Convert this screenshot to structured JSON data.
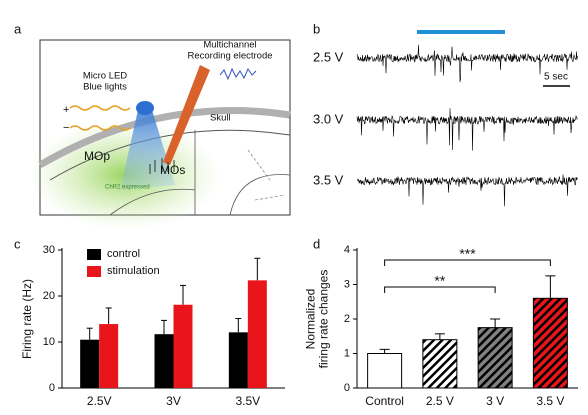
{
  "panel_labels": [
    "a",
    "b"
  ],
  "schematic": {
    "electrode_label": [
      "Multichannel",
      "Recording electrode"
    ],
    "led_label": [
      "Micro LED",
      "Blue lights"
    ],
    "skull": "Skull",
    "mop": "MOp",
    "mos": "MOs",
    "chr2": "ChR2 expressed",
    "plus": "+",
    "minus": "−"
  },
  "traces": {
    "voltages": [
      "2.5 V",
      "3.0 V",
      "3.5 V"
    ],
    "scale": "5 sec"
  },
  "chart_data": [
    {
      "type": "bar",
      "panel": "c",
      "ylabel": "Firing rate (Hz)",
      "categories": [
        "2.5V",
        "3V",
        "3.5V"
      ],
      "series": [
        {
          "name": "control",
          "color": "#000000",
          "values": [
            10.5,
            11.7,
            12.1
          ],
          "errors": [
            2.5,
            3,
            3
          ]
        },
        {
          "name": "stimulation",
          "color": "#e8151b",
          "values": [
            13.9,
            18.1,
            23.4
          ],
          "errors": [
            3.5,
            4.2,
            4.8
          ]
        }
      ],
      "ylim": [
        0,
        30
      ],
      "yticks": [
        0,
        10,
        20,
        30
      ],
      "legend": "top-left"
    },
    {
      "type": "bar",
      "panel": "d",
      "ylabel": [
        "Normalized",
        "firing rate changes"
      ],
      "categories": [
        "Control",
        "2.5 V",
        "3 V",
        "3.5 V"
      ],
      "values": [
        1.0,
        1.4,
        1.75,
        2.6
      ],
      "errors": [
        0.12,
        0.17,
        0.25,
        0.65
      ],
      "colors": [
        "#ffffff",
        "#ffffff",
        "#808080",
        "#e8151b"
      ],
      "hatch": [
        false,
        true,
        true,
        true
      ],
      "ylim": [
        0,
        4
      ],
      "yticks": [
        0,
        1,
        2,
        3,
        4
      ],
      "annotations": [
        {
          "text": "**",
          "from": "Control",
          "to": "3 V"
        },
        {
          "text": "***",
          "from": "Control",
          "to": "3.5 V"
        }
      ]
    }
  ]
}
